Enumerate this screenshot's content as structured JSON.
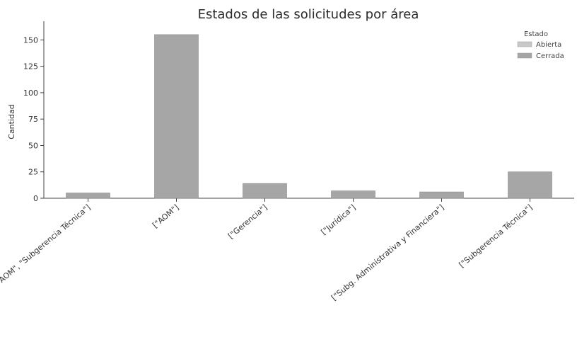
{
  "chart_data": {
    "type": "bar",
    "title": "Estados de las solicitudes por área",
    "xlabel": "",
    "ylabel": "Cantidad",
    "ylim": [
      0,
      165
    ],
    "yticks": [
      0,
      25,
      50,
      75,
      100,
      125,
      150
    ],
    "grid": false,
    "stacked": true,
    "legend_placement": "top-right",
    "legend_title": "Estado",
    "categories": [
      "[\"AOM\", \"Subgerencia Técnica\"]",
      "[\"AOM\"]",
      "[\"Gerencia\"]",
      "[\"Jurídica\"]",
      "[\"Subg. Administrativa y Financiera\"]",
      "[\"Subgerencia Técnica\"]"
    ],
    "series": [
      {
        "name": "Abierta",
        "values": [
          0,
          0,
          0,
          0,
          0,
          0
        ],
        "color": "#c9c9c9"
      },
      {
        "name": "Cerrada",
        "values": [
          5,
          155,
          14,
          7,
          6,
          25
        ],
        "color": "#a6a6a6"
      }
    ]
  }
}
